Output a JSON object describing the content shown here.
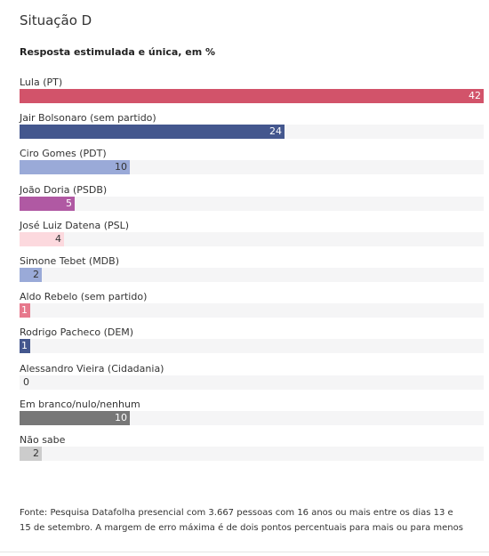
{
  "header": {
    "title": "Situação D",
    "subtitle": "Resposta estimulada e única, em %"
  },
  "chart_data": {
    "type": "bar",
    "orientation": "horizontal",
    "title": "Situação D",
    "subtitle": "Resposta estimulada e única, em %",
    "xlim": [
      0,
      42
    ],
    "categories": [
      "Lula (PT)",
      "Jair Bolsonaro (sem partido)",
      "Ciro Gomes (PDT)",
      "João Doria (PSDB)",
      "José Luiz Datena (PSL)",
      "Simone Tebet (MDB)",
      "Aldo Rebelo (sem partido)",
      "Rodrigo Pacheco (DEM)",
      "Alessandro Vieira (Cidadania)",
      "Em branco/nulo/nenhum",
      "Não sabe"
    ],
    "values": [
      42,
      24,
      10,
      5,
      4,
      2,
      1,
      1,
      0,
      10,
      2
    ],
    "colors": [
      "#d2536a",
      "#44578e",
      "#9aaad8",
      "#b059a3",
      "#fcd9de",
      "#9aaad8",
      "#e7788c",
      "#44578e",
      "#9aaad8",
      "#777777",
      "#cccccc"
    ],
    "value_label_colors": [
      "#ffffff",
      "#ffffff",
      "#333333",
      "#ffffff",
      "#333333",
      "#333333",
      "#ffffff",
      "#ffffff",
      "#333333",
      "#ffffff",
      "#333333"
    ],
    "track_color": "#f5f5f6",
    "grid": false,
    "legend": "none"
  },
  "footer": {
    "source": "Fonte: Pesquisa Datafolha presencial com 3.667 pessoas com 16 anos ou mais entre os dias 13 e 15 de setembro. A margem de erro máxima é de dois pontos percentuais para mais ou para menos"
  }
}
